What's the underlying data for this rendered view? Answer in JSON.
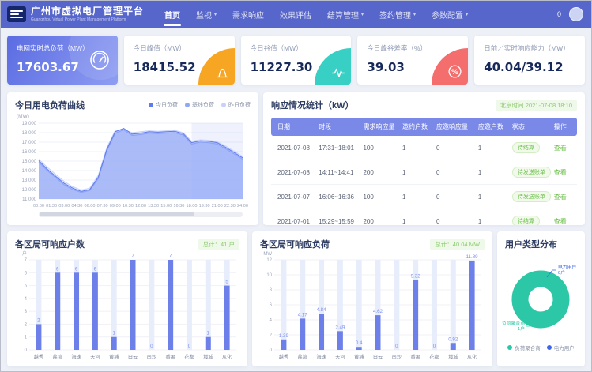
{
  "header": {
    "title": "广州市虚拟电厂管理平台",
    "subtitle": "Guangzhou Virtual Power Plant Management Platform",
    "nav": [
      {
        "id": "home",
        "label": "首页",
        "active": true,
        "dropdown": false
      },
      {
        "id": "monitoring",
        "label": "监视",
        "active": false,
        "dropdown": true
      },
      {
        "id": "demand-response",
        "label": "需求响应",
        "active": false,
        "dropdown": false
      },
      {
        "id": "effect-evaluation",
        "label": "效果评估",
        "active": false,
        "dropdown": false
      },
      {
        "id": "settlement-management",
        "label": "结算管理",
        "active": false,
        "dropdown": true
      },
      {
        "id": "contract-management",
        "label": "签约管理",
        "active": false,
        "dropdown": true
      },
      {
        "id": "parameter-config",
        "label": "参数配置",
        "active": false,
        "dropdown": true
      }
    ],
    "notification_count": "0"
  },
  "stat_cards": [
    {
      "name": "realtime-grid-load",
      "label": "电网实时总负荷（MW）",
      "value": "17603.67",
      "icon": "gauge",
      "accent": "#7d8cf0",
      "primary": true
    },
    {
      "name": "today-peak",
      "label": "今日峰值（MW）",
      "value": "18415.52",
      "icon": "peak",
      "accent": "#f6a623",
      "primary": false
    },
    {
      "name": "today-valley",
      "label": "今日谷值（MW）",
      "value": "11227.30",
      "icon": "pulse",
      "accent": "#38cfc4",
      "primary": false
    },
    {
      "name": "peak-valley-rate",
      "label": "今日峰谷差率（%）",
      "value": "39.03",
      "icon": "percent",
      "accent": "#f56e6e",
      "primary": false
    },
    {
      "name": "response-capability",
      "label": "日前／实时响应能力（MW）",
      "value": "40.04/39.12",
      "icon": null,
      "accent": null,
      "primary": false
    }
  ],
  "response_table": {
    "title": "响应情况统计（kW）",
    "timestamp": "北京时间 2021-07-08 18:10",
    "columns": [
      "日期",
      "时段",
      "需求响应量",
      "邀约户数",
      "应邀响应量",
      "应邀户数",
      "状态",
      "操作"
    ],
    "rows": [
      {
        "cells": [
          "2021-07-08",
          "17:31~18:01",
          "100",
          "1",
          "0",
          "1"
        ],
        "status": "待结算",
        "action": "查看"
      },
      {
        "cells": [
          "2021-07-08",
          "14:11~14:41",
          "200",
          "1",
          "0",
          "1"
        ],
        "status": "待发送账单",
        "action": "查看"
      },
      {
        "cells": [
          "2021-07-07",
          "16:06~16:36",
          "100",
          "1",
          "0",
          "1"
        ],
        "status": "待发送账单",
        "action": "查看"
      },
      {
        "cells": [
          "2021-07-01",
          "15:29~15:59",
          "200",
          "1",
          "0",
          "1"
        ],
        "status": "待结算",
        "action": "查看"
      }
    ]
  },
  "chart_data": [
    {
      "id": "load-curve",
      "type": "area",
      "title": "今日用电负荷曲线",
      "ylabel": "(MW)",
      "ylim": [
        11000,
        19000
      ],
      "y_step": 1000,
      "xlim": [
        0,
        24
      ],
      "x_ticks": [
        "00:00",
        "01:30",
        "03:00",
        "04:30",
        "06:00",
        "07:30",
        "09:00",
        "10:30",
        "12:00",
        "13:30",
        "15:00",
        "16:30",
        "18:00",
        "19:30",
        "21:00",
        "22:30",
        "24:00"
      ],
      "highlight_region": [
        18,
        24
      ],
      "legend": [
        "今日负荷",
        "基线负荷",
        "昨日负荷"
      ],
      "series": [
        {
          "name": "今日负荷",
          "color": "#5f7bf0",
          "fill": "rgba(127,152,244,0.45)",
          "values": [
            15050,
            14150,
            13400,
            12650,
            12150,
            11800,
            12000,
            13300,
            16200,
            18100,
            18450,
            17850,
            17950,
            18100,
            18050,
            18100,
            18150,
            17900,
            16950,
            17150,
            17100,
            16950,
            16450,
            15900,
            15350
          ]
        },
        {
          "name": "基线负荷",
          "color": "#93a6f4",
          "fill": "rgba(160,178,248,0.35)",
          "values": [
            14900,
            14000,
            13250,
            12500,
            12000,
            11700,
            11900,
            13150,
            16050,
            17950,
            18300,
            17700,
            17800,
            17950,
            17900,
            17950,
            18000,
            17750,
            16800,
            17000,
            16950,
            16800,
            16300,
            15750,
            15200
          ]
        },
        {
          "name": "昨日负荷",
          "color": "#c7d2fa",
          "fill": "rgba(205,215,252,0.5)",
          "values": [
            15200,
            14350,
            13600,
            12850,
            12300,
            11950,
            12150,
            13500,
            16400,
            18250,
            18300,
            18000,
            18100,
            18200,
            18150,
            18200,
            18250,
            18000,
            17100,
            17250,
            17200,
            17050,
            16600,
            16050,
            15500
          ]
        }
      ]
    },
    {
      "id": "district-users",
      "type": "bar",
      "title": "各区局可响应户数",
      "total_badge": "总计：41 户",
      "unit": "户",
      "ylim": [
        0,
        7
      ],
      "y_step": 1,
      "categories": [
        "越秀",
        "荔湾",
        "海珠",
        "天河",
        "黄埔",
        "白云",
        "南沙",
        "番禺",
        "花都",
        "增城",
        "从化"
      ],
      "values": [
        2,
        6,
        6,
        6,
        1,
        7,
        0,
        7,
        0,
        1,
        5
      ],
      "bar_color": "#6d80ea",
      "track_color": "#e7edfb",
      "label_color": "#7b8ef0"
    },
    {
      "id": "district-load",
      "type": "bar",
      "title": "各区局可响应负荷",
      "total_badge": "总计：40.04 MW",
      "unit": "MW",
      "ylim": [
        0,
        12
      ],
      "y_step": 2,
      "categories": [
        "越秀",
        "荔湾",
        "海珠",
        "天河",
        "黄埔",
        "白云",
        "南沙",
        "番禺",
        "花都",
        "增城",
        "从化"
      ],
      "values": [
        1.39,
        4.17,
        4.84,
        2.49,
        0.4,
        4.62,
        0,
        9.32,
        0,
        0.92,
        11.89
      ],
      "bar_color": "#6d80ea",
      "track_color": "#e7edfb",
      "label_color": "#7b8ef0"
    },
    {
      "id": "user-type",
      "type": "pie",
      "title": "用户类型分布",
      "slices": [
        {
          "name": "负荷聚合商",
          "value": 1,
          "count_label": "1户",
          "color": "#2cc7a6"
        },
        {
          "name": "电力用户",
          "value": 0,
          "count_label": "0户",
          "color": "#3f66e8"
        }
      ]
    }
  ]
}
